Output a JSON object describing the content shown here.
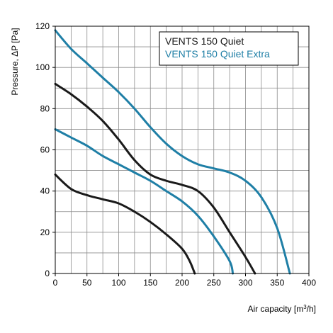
{
  "chart_data": {
    "type": "line",
    "xlabel_prefix": "Air capacity [m",
    "xlabel_sup": "3",
    "xlabel_suffix": "/h]",
    "ylabel": "Pressure, ΔP [Pa]",
    "xlim": [
      0,
      400
    ],
    "ylim": [
      0,
      120
    ],
    "x_major_ticks": [
      0,
      50,
      100,
      150,
      200,
      250,
      300,
      350,
      400
    ],
    "y_major_ticks": [
      0,
      20,
      40,
      60,
      80,
      100,
      120
    ],
    "x_grid_step": 25,
    "y_grid_step": 10,
    "grid": true,
    "legend_position": "top-right",
    "legend": [
      {
        "label": "VENTS 150 Quiet",
        "color": "#1a1a1a"
      },
      {
        "label": "VENTS 150 Quiet Extra",
        "color": "#1f7fa6"
      }
    ],
    "series": [
      {
        "group": "VENTS 150 Quiet",
        "color": "#1a1a1a",
        "points": [
          [
            0,
            48
          ],
          [
            25,
            41
          ],
          [
            50,
            38
          ],
          [
            75,
            36
          ],
          [
            100,
            34
          ],
          [
            125,
            30
          ],
          [
            150,
            25
          ],
          [
            175,
            19
          ],
          [
            200,
            12
          ],
          [
            212,
            6
          ],
          [
            220,
            0
          ]
        ]
      },
      {
        "group": "VENTS 150 Quiet",
        "color": "#1a1a1a",
        "points": [
          [
            0,
            92
          ],
          [
            25,
            87
          ],
          [
            50,
            81
          ],
          [
            75,
            74
          ],
          [
            100,
            65
          ],
          [
            125,
            55
          ],
          [
            150,
            48
          ],
          [
            175,
            45
          ],
          [
            200,
            43
          ],
          [
            225,
            40
          ],
          [
            250,
            32
          ],
          [
            275,
            20
          ],
          [
            300,
            8
          ],
          [
            315,
            0
          ]
        ]
      },
      {
        "group": "VENTS 150 Quiet Extra",
        "color": "#1f7fa6",
        "points": [
          [
            0,
            70
          ],
          [
            25,
            66
          ],
          [
            50,
            62
          ],
          [
            75,
            57
          ],
          [
            100,
            53
          ],
          [
            125,
            49
          ],
          [
            150,
            45
          ],
          [
            175,
            40
          ],
          [
            200,
            35
          ],
          [
            225,
            28
          ],
          [
            250,
            18
          ],
          [
            275,
            6
          ],
          [
            280,
            0
          ]
        ]
      },
      {
        "group": "VENTS 150 Quiet Extra",
        "color": "#1f7fa6",
        "points": [
          [
            0,
            118
          ],
          [
            25,
            109
          ],
          [
            50,
            102
          ],
          [
            75,
            95
          ],
          [
            100,
            88
          ],
          [
            125,
            80
          ],
          [
            150,
            71
          ],
          [
            175,
            63
          ],
          [
            200,
            57
          ],
          [
            225,
            53
          ],
          [
            250,
            51
          ],
          [
            275,
            49
          ],
          [
            300,
            45
          ],
          [
            325,
            37
          ],
          [
            350,
            22
          ],
          [
            370,
            0
          ]
        ]
      }
    ]
  }
}
